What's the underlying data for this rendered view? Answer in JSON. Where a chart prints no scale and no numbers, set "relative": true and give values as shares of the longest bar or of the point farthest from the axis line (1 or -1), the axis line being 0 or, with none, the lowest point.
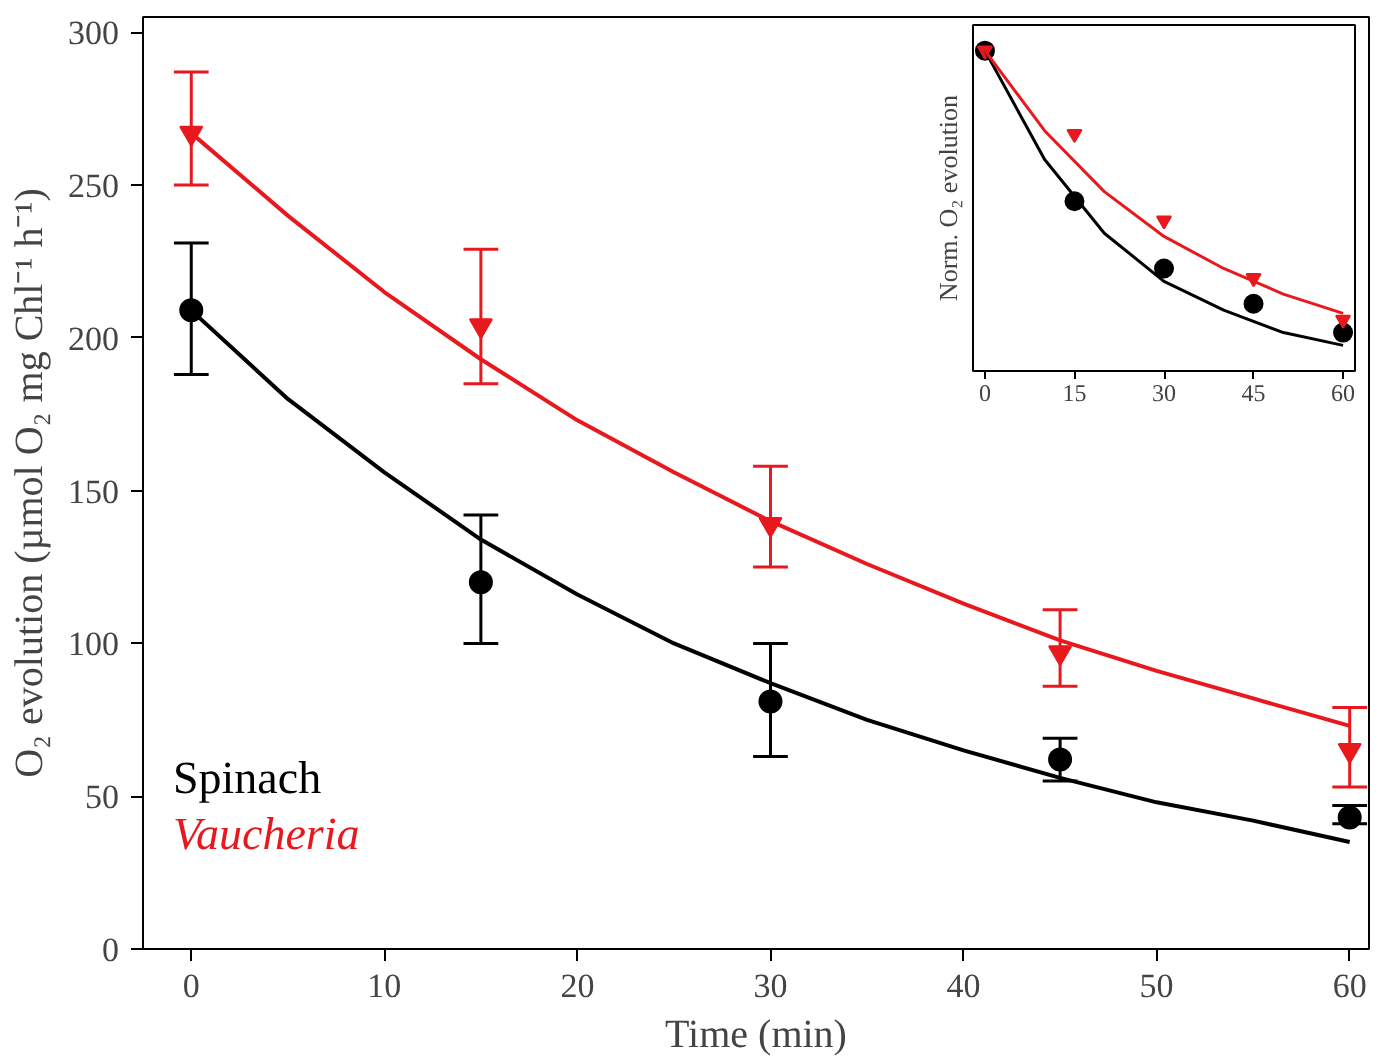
{
  "chart_data": [
    {
      "type": "scatter",
      "xlabel": "Time (min)",
      "ylabel": "O₂ evolution (µmol O₂ mg Chl⁻¹ h⁻¹)",
      "x": [
        0,
        15,
        30,
        45,
        60
      ],
      "xlim": [
        -2.5,
        61
      ],
      "ylim": [
        0,
        305
      ],
      "xticks": [
        0,
        10,
        20,
        30,
        40,
        50,
        60
      ],
      "yticks": [
        0,
        50,
        100,
        150,
        200,
        250,
        300
      ],
      "grid": false,
      "legend": "bottom left",
      "series": [
        {
          "name": "Spinach",
          "color": "#000000",
          "marker": "circle",
          "values": [
            209,
            120,
            81,
            62,
            43
          ],
          "errors": [
            [
              188,
              231
            ],
            [
              100,
              142
            ],
            [
              63,
              100
            ],
            [
              55,
              69
            ],
            [
              41,
              47
            ]
          ]
        },
        {
          "name": "Vaucheria",
          "color": "#e8191e",
          "marker": "triangle",
          "values": [
            267,
            204,
            139,
            97,
            65
          ],
          "errors": [
            [
              250,
              287
            ],
            [
              185,
              229
            ],
            [
              125,
              158
            ],
            [
              86,
              111
            ],
            [
              53,
              79
            ]
          ]
        },
        {
          "type": "line",
          "color": "#000000",
          "x": [
            0,
            5,
            10,
            15,
            20,
            25,
            30,
            35,
            40,
            45,
            50,
            55,
            60
          ],
          "values": [
            209,
            180,
            156,
            134,
            116,
            100,
            87,
            75,
            65,
            56,
            48,
            42,
            35
          ]
        },
        {
          "type": "line",
          "color": "#e8191e",
          "x": [
            0,
            5,
            10,
            15,
            20,
            25,
            30,
            35,
            40,
            45,
            50,
            55,
            60
          ],
          "values": [
            267,
            240,
            215,
            193,
            173,
            156,
            140,
            126,
            113,
            101,
            91,
            82,
            73
          ]
        }
      ]
    },
    {
      "type": "scatter",
      "relative": true,
      "ylabel": "Norm. O₂ evolution",
      "x": [
        0,
        15,
        30,
        45,
        60
      ],
      "xlim": [
        -2,
        62
      ],
      "xticks": [
        0,
        15,
        30,
        45,
        60
      ],
      "tick_labels": "x",
      "grid": false,
      "series": [
        {
          "color": "#000000",
          "marker": "circle",
          "values": [
            1,
            0.53,
            0.32,
            0.21,
            0.12
          ]
        },
        {
          "color": "#e8191e",
          "marker": "triangle",
          "values": [
            1,
            0.74,
            0.47,
            0.29,
            0.16
          ]
        },
        {
          "type": "line",
          "color": "#000000",
          "x": [
            0,
            10,
            20,
            30,
            40,
            50,
            60
          ],
          "values": [
            1,
            0.66,
            0.43,
            0.28,
            0.19,
            0.12,
            0.08
          ]
        },
        {
          "type": "line",
          "color": "#e8191e",
          "x": [
            0,
            10,
            20,
            30,
            40,
            50,
            60
          ],
          "values": [
            1,
            0.75,
            0.56,
            0.42,
            0.32,
            0.24,
            0.18
          ]
        }
      ]
    }
  ]
}
